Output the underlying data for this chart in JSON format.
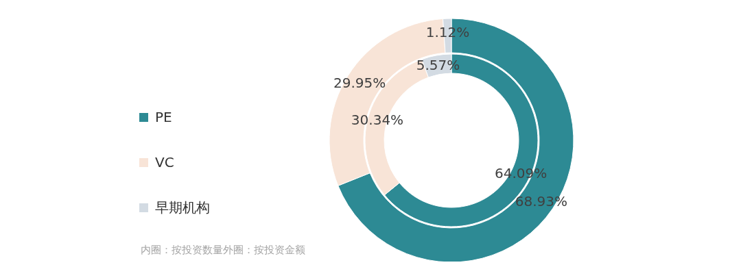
{
  "chart_data": {
    "type": "donut",
    "categories": [
      "PE",
      "VC",
      "早期机构"
    ],
    "series": [
      {
        "values": [
          64.09,
          30.34,
          5.57
        ],
        "value_labels": [
          "64.09%",
          "30.34%",
          "5.57%"
        ],
        "colors": [
          "#2d8a94",
          "#f8e4d7",
          "#d3dbe3"
        ]
      },
      {
        "values": [
          68.93,
          29.95,
          1.12
        ],
        "value_labels": [
          "68.93%",
          "29.95%",
          "1.12%"
        ],
        "colors": [
          "#2d8a94",
          "#f8e4d7",
          "#d3dbe3"
        ]
      }
    ],
    "legend": "left",
    "annotations": [
      "内圈：按投资数量外圈：按投资金额"
    ]
  }
}
